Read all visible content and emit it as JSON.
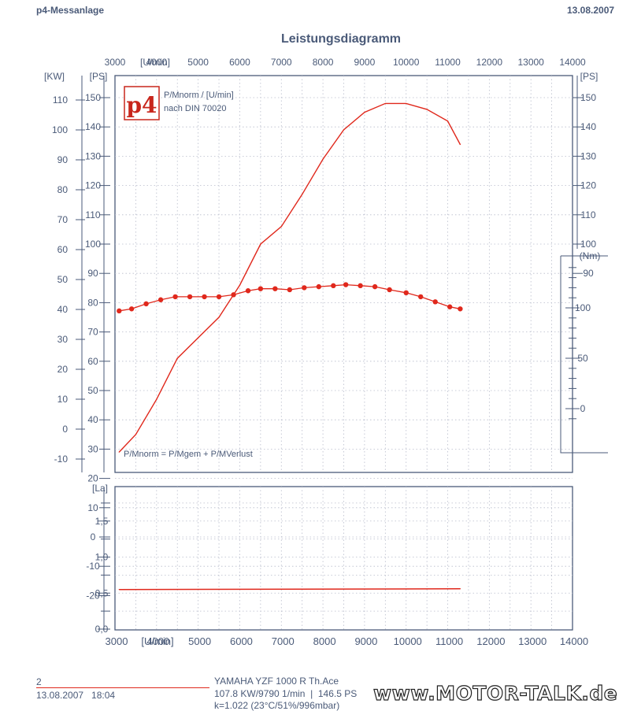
{
  "header": {
    "left": "p4-Messanlage",
    "right": "13.08.2007"
  },
  "logo": {
    "text": "p4"
  },
  "footer": {
    "number": "2",
    "datetime": "13.08.2007   18:04",
    "vehicle": "YAMAHA YZF 1000 R Th.Ace",
    "summary": "107.8 KW/9790 1/min  |  146.5 PS",
    "conditions": "k=1.022 (23°C/51%/996mbar)"
  },
  "watermark": "www.MOTOR-TALK.de",
  "colors": {
    "axis": "#4a5a78",
    "curve": "#e0281c",
    "grid": "#b8bccb"
  },
  "chart_data": [
    {
      "type": "line",
      "title": "Leistungsdiagramm",
      "xlabel": "[U/min]",
      "x_ticks": [
        3000,
        4000,
        5000,
        6000,
        7000,
        8000,
        9000,
        10000,
        11000,
        12000,
        13000,
        14000
      ],
      "xlim": [
        3000,
        14000
      ],
      "left_axis_label": "[KW]",
      "left_ticks": [
        110,
        100,
        90,
        80,
        70,
        60,
        50,
        40,
        30,
        20,
        10,
        0,
        -10
      ],
      "left_axis_ylim": [
        -15,
        115
      ],
      "ps_axis_label": "[PS]",
      "ps_ticks_left": [
        150,
        140,
        130,
        120,
        110,
        100,
        90,
        80,
        70,
        60,
        50,
        40,
        30,
        20,
        10,
        0,
        -10,
        -20
      ],
      "ps_ticks_right": [
        150,
        140,
        130,
        120,
        110,
        100,
        90
      ],
      "ylim": [
        -20,
        155
      ],
      "nm_axis_label": "(Nm)",
      "nm_ticks": [
        100,
        50,
        0
      ],
      "annotations": [
        "P/Mnorm / [U/min]",
        "nach DIN 70020",
        "P/Mnorm = P/Mgem + P/MVerlust"
      ],
      "grid": true,
      "series": [
        {
          "unit": "PS",
          "x": [
            3100,
            3500,
            4000,
            4500,
            5000,
            5500,
            6000,
            6500,
            7000,
            7500,
            8000,
            8500,
            9000,
            9500,
            10000,
            10500,
            11000,
            11300
          ],
          "values": [
            29,
            35,
            47,
            61,
            68,
            75,
            86,
            100,
            106,
            117,
            129,
            139,
            145,
            148,
            148,
            146,
            142,
            134
          ]
        },
        {
          "unit": "Nm",
          "markers": true,
          "x": [
            3100,
            3400,
            3750,
            4100,
            4450,
            4800,
            5150,
            5500,
            5850,
            6200,
            6500,
            6850,
            7200,
            7550,
            7900,
            8250,
            8550,
            8900,
            9250,
            9600,
            10000,
            10350,
            10700,
            11050,
            11300
          ],
          "values": [
            97,
            99,
            104,
            108,
            111,
            111,
            111,
            111,
            113,
            117,
            119,
            119,
            118,
            120,
            121,
            122,
            123,
            122,
            121,
            118,
            115,
            111,
            106,
            101,
            99
          ]
        }
      ]
    },
    {
      "type": "line",
      "ylabel": "[La]",
      "xlabel": "[U/min]",
      "x_ticks": [
        3000,
        4000,
        5000,
        6000,
        7000,
        8000,
        9000,
        10000,
        11000,
        12000,
        13000,
        14000
      ],
      "xlim": [
        3000,
        14000
      ],
      "y_ticks": [
        "0,0",
        "0,5",
        "1,0",
        "1,5"
      ],
      "ylim": [
        0,
        1.85
      ],
      "grid": true,
      "series": [
        {
          "x": [
            3100,
            11300
          ],
          "values": [
            0.55,
            0.56
          ]
        }
      ]
    }
  ]
}
